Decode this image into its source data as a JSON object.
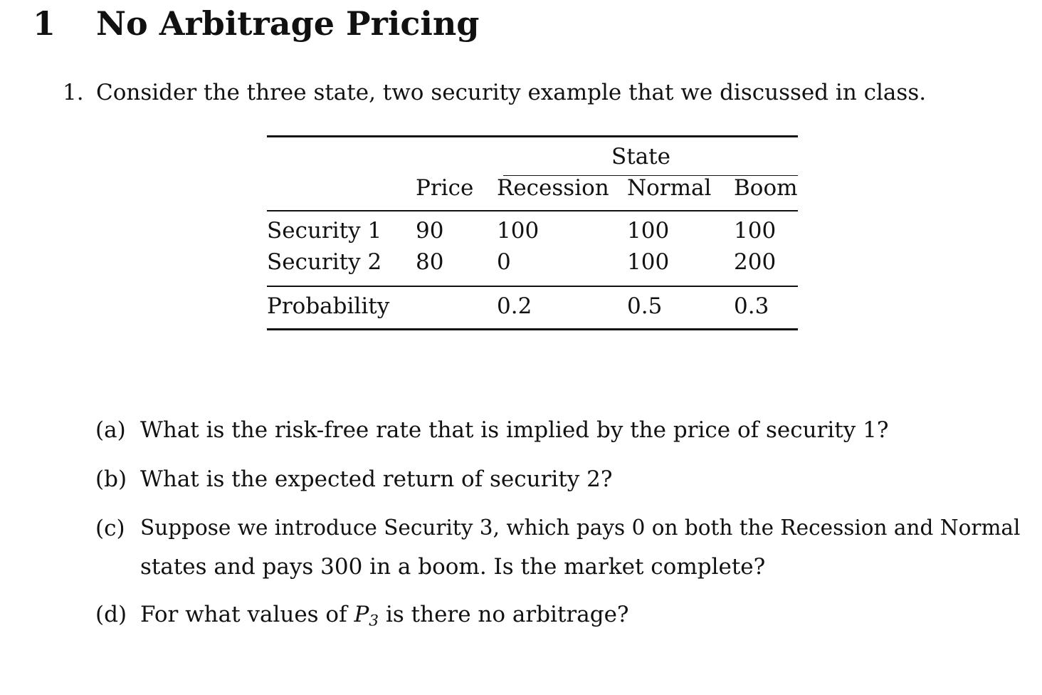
{
  "section": {
    "number": "1",
    "title": "No Arbitrage Pricing"
  },
  "question": {
    "number": "1.",
    "text": "Consider the three state, two security example that we discussed in class."
  },
  "table": {
    "group_header": "State",
    "columns": [
      "Price",
      "Recession",
      "Normal",
      "Boom"
    ],
    "rows": [
      {
        "label": "Security 1",
        "price": "90",
        "recession": "100",
        "normal": "100",
        "boom": "100"
      },
      {
        "label": "Security 2",
        "price": "80",
        "recession": "0",
        "normal": "100",
        "boom": "200"
      }
    ],
    "probability": {
      "label": "Probability",
      "recession": "0.2",
      "normal": "0.5",
      "boom": "0.3"
    }
  },
  "subquestions": [
    {
      "label": "(a)",
      "text": "What is the risk-free rate that is implied by the price of security 1?"
    },
    {
      "label": "(b)",
      "text": "What is the expected return of security 2?"
    },
    {
      "label": "(c)",
      "line1": "Suppose we introduce Security 3, which pays 0 on both the Recession and Normal",
      "line2": "states and pays 300 in a boom. Is the market complete?"
    },
    {
      "label": "(d)",
      "text_before": "For what values of",
      "var": "P",
      "var_sub": "3",
      "text_after": "is there no arbitrage?"
    }
  ]
}
